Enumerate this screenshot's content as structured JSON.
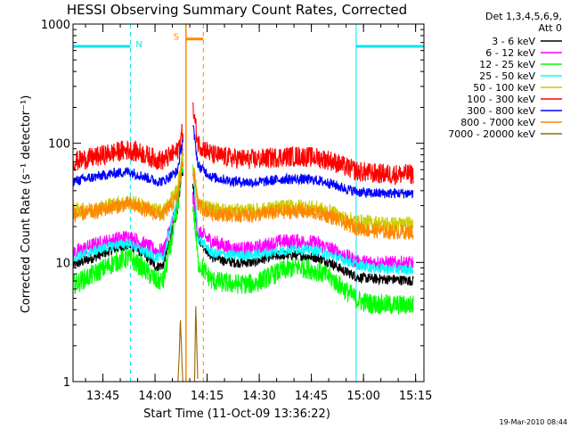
{
  "chart_data": {
    "type": "line",
    "title": "HESSI Observing Summary Count Rates, Corrected",
    "xlabel": "Start Time (11-Oct-09 13:36:22)",
    "ylabel": "Corrected Count Rate (s⁻¹ detector⁻¹)",
    "yscale": "log",
    "ylim": [
      1,
      1000
    ],
    "xlim_minutes_since_1336": [
      0,
      101
    ],
    "x_ticks": [
      {
        "label": "13:45",
        "t": 8.6
      },
      {
        "label": "14:00",
        "t": 23.6
      },
      {
        "label": "14:15",
        "t": 38.6
      },
      {
        "label": "14:30",
        "t": 53.6
      },
      {
        "label": "14:45",
        "t": 68.6
      },
      {
        "label": "15:00",
        "t": 83.6
      },
      {
        "label": "15:15",
        "t": 98.6
      }
    ],
    "y_ticks": [
      {
        "label": "1",
        "v": 1
      },
      {
        "label": "10",
        "v": 10
      },
      {
        "label": "100",
        "v": 100
      },
      {
        "label": "1000",
        "v": 1000
      }
    ],
    "legend_header": [
      "Det 1,3,4,5,6,9,",
      "Att 0"
    ],
    "series": [
      {
        "name": "3 - 6 keV",
        "color": "#000000",
        "points": [
          [
            0,
            9.5
          ],
          [
            6,
            11
          ],
          [
            12,
            13
          ],
          [
            16,
            14
          ],
          [
            20,
            12
          ],
          [
            24,
            9.2
          ],
          [
            26,
            9.5
          ],
          [
            30,
            27
          ],
          [
            31.5,
            60
          ],
          [
            34.6,
            42
          ],
          [
            36,
            16
          ],
          [
            40,
            11
          ],
          [
            46,
            10
          ],
          [
            52,
            10
          ],
          [
            56,
            11
          ],
          [
            60,
            11.5
          ],
          [
            65,
            11.5
          ],
          [
            70,
            11
          ],
          [
            74,
            10
          ],
          [
            78,
            8.5
          ],
          [
            82,
            7.5
          ],
          [
            86,
            7.3
          ],
          [
            92,
            7.2
          ],
          [
            98,
            7
          ]
        ]
      },
      {
        "name": "6 - 12 keV",
        "color": "#ff00ff",
        "points": [
          [
            0,
            12
          ],
          [
            6,
            14
          ],
          [
            12,
            15.5
          ],
          [
            16,
            16.5
          ],
          [
            20,
            14.5
          ],
          [
            24,
            12.5
          ],
          [
            26,
            12.5
          ],
          [
            30,
            30
          ],
          [
            31.5,
            80
          ],
          [
            34.6,
            35
          ],
          [
            36,
            18
          ],
          [
            40,
            15
          ],
          [
            46,
            13
          ],
          [
            52,
            13
          ],
          [
            56,
            14
          ],
          [
            60,
            15
          ],
          [
            65,
            15
          ],
          [
            70,
            14.5
          ],
          [
            74,
            13
          ],
          [
            78,
            11.5
          ],
          [
            82,
            10
          ],
          [
            86,
            10
          ],
          [
            92,
            9.8
          ],
          [
            98,
            9.8
          ]
        ]
      },
      {
        "name": "12 - 25 keV",
        "color": "#00ff00",
        "points": [
          [
            0,
            6.5
          ],
          [
            6,
            8
          ],
          [
            12,
            10
          ],
          [
            16,
            11
          ],
          [
            20,
            9
          ],
          [
            24,
            7
          ],
          [
            26,
            7
          ],
          [
            30,
            26
          ],
          [
            31.5,
            70
          ],
          [
            34.6,
            30
          ],
          [
            36,
            10
          ],
          [
            40,
            7
          ],
          [
            46,
            6.6
          ],
          [
            52,
            6.6
          ],
          [
            56,
            7.5
          ],
          [
            60,
            8.5
          ],
          [
            65,
            9.2
          ],
          [
            70,
            8.5
          ],
          [
            74,
            7.5
          ],
          [
            78,
            6
          ],
          [
            82,
            4.8
          ],
          [
            86,
            4.5
          ],
          [
            92,
            4.4
          ],
          [
            98,
            4.4
          ]
        ]
      },
      {
        "name": "25 - 50 keV",
        "color": "#00ffff",
        "points": [
          [
            0,
            11
          ],
          [
            6,
            12.5
          ],
          [
            12,
            14
          ],
          [
            16,
            14.5
          ],
          [
            20,
            12.5
          ],
          [
            24,
            11
          ],
          [
            26,
            11
          ],
          [
            30,
            34
          ],
          [
            31.5,
            85
          ],
          [
            34.6,
            60
          ],
          [
            36,
            16
          ],
          [
            40,
            12
          ],
          [
            46,
            11.5
          ],
          [
            52,
            11.5
          ],
          [
            56,
            12
          ],
          [
            60,
            12.5
          ],
          [
            65,
            13
          ],
          [
            70,
            12.5
          ],
          [
            74,
            11.5
          ],
          [
            78,
            10.5
          ],
          [
            82,
            9.5
          ],
          [
            86,
            9
          ],
          [
            92,
            8.8
          ],
          [
            98,
            8.7
          ]
        ]
      },
      {
        "name": "50 - 100 keV",
        "color": "#cccc00",
        "points": [
          [
            0,
            27
          ],
          [
            6,
            28
          ],
          [
            12,
            31
          ],
          [
            16,
            32
          ],
          [
            20,
            30
          ],
          [
            24,
            27
          ],
          [
            26,
            27
          ],
          [
            30,
            40
          ],
          [
            31.5,
            80
          ],
          [
            34.6,
            65
          ],
          [
            36,
            32
          ],
          [
            40,
            28
          ],
          [
            46,
            27
          ],
          [
            52,
            27
          ],
          [
            56,
            28
          ],
          [
            60,
            29
          ],
          [
            65,
            29.5
          ],
          [
            70,
            28.5
          ],
          [
            74,
            26.5
          ],
          [
            78,
            23.5
          ],
          [
            82,
            22
          ],
          [
            86,
            21.5
          ],
          [
            92,
            21
          ],
          [
            98,
            21
          ]
        ]
      },
      {
        "name": "100 - 300 keV",
        "color": "#ff0000",
        "points": [
          [
            0,
            70
          ],
          [
            6,
            76
          ],
          [
            12,
            84
          ],
          [
            16,
            88
          ],
          [
            20,
            82
          ],
          [
            24,
            73
          ],
          [
            26,
            72
          ],
          [
            30,
            85
          ],
          [
            31.5,
            125
          ],
          [
            34.6,
            190
          ],
          [
            36,
            100
          ],
          [
            40,
            80
          ],
          [
            46,
            75
          ],
          [
            52,
            73
          ],
          [
            56,
            75
          ],
          [
            60,
            77
          ],
          [
            65,
            78
          ],
          [
            70,
            76
          ],
          [
            74,
            72
          ],
          [
            78,
            64
          ],
          [
            82,
            58
          ],
          [
            86,
            56
          ],
          [
            92,
            55
          ],
          [
            98,
            55
          ]
        ]
      },
      {
        "name": "300 - 800 keV",
        "color": "#0000ff",
        "points": [
          [
            0,
            48
          ],
          [
            6,
            52
          ],
          [
            12,
            56
          ],
          [
            16,
            58
          ],
          [
            20,
            53
          ],
          [
            24,
            48
          ],
          [
            26,
            48
          ],
          [
            30,
            58
          ],
          [
            31.5,
            105
          ],
          [
            34.6,
            135
          ],
          [
            36,
            65
          ],
          [
            40,
            52
          ],
          [
            46,
            48
          ],
          [
            52,
            47
          ],
          [
            56,
            48
          ],
          [
            60,
            50
          ],
          [
            65,
            50
          ],
          [
            70,
            49
          ],
          [
            74,
            46
          ],
          [
            78,
            42
          ],
          [
            82,
            39
          ],
          [
            86,
            38
          ],
          [
            92,
            38
          ],
          [
            98,
            38
          ]
        ]
      },
      {
        "name": "800 - 7000 keV",
        "color": "#ff8800",
        "points": [
          [
            0,
            25
          ],
          [
            6,
            26.5
          ],
          [
            12,
            29.5
          ],
          [
            16,
            31
          ],
          [
            20,
            28.5
          ],
          [
            24,
            25.5
          ],
          [
            26,
            25.5
          ],
          [
            30,
            35
          ],
          [
            31.5,
            70
          ],
          [
            34.6,
            60
          ],
          [
            36,
            30
          ],
          [
            40,
            26
          ],
          [
            46,
            25
          ],
          [
            52,
            25
          ],
          [
            56,
            26
          ],
          [
            60,
            26.5
          ],
          [
            65,
            27
          ],
          [
            70,
            26
          ],
          [
            74,
            24.5
          ],
          [
            78,
            21.5
          ],
          [
            82,
            19.5
          ],
          [
            86,
            18.5
          ],
          [
            92,
            18
          ],
          [
            98,
            18
          ]
        ]
      },
      {
        "name": "7000 - 20000 keV",
        "color": "#996600",
        "points": [
          [
            30.2,
            1
          ],
          [
            30.5,
            1.5
          ],
          [
            30.9,
            3.4
          ],
          [
            31.3,
            1.6
          ],
          [
            31.6,
            1
          ],
          [
            35,
            1
          ],
          [
            35.3,
            4.5
          ],
          [
            35.6,
            2.2
          ],
          [
            35.9,
            1
          ]
        ]
      }
    ],
    "periods": [
      {
        "label": "N",
        "color": "#00e5ee",
        "start": 0,
        "end": 16.5,
        "level": 650
      },
      {
        "label": "S",
        "color": "#ff8800",
        "start": 32.5,
        "end": 37.5,
        "level": 750
      },
      {
        "label": "",
        "color": "#00e5ee",
        "start": 81.5,
        "end": 101,
        "level": 650
      }
    ],
    "grid": false,
    "legend_position": "right"
  },
  "footer": {
    "timestamp": "19-Mar-2010 08:44"
  }
}
